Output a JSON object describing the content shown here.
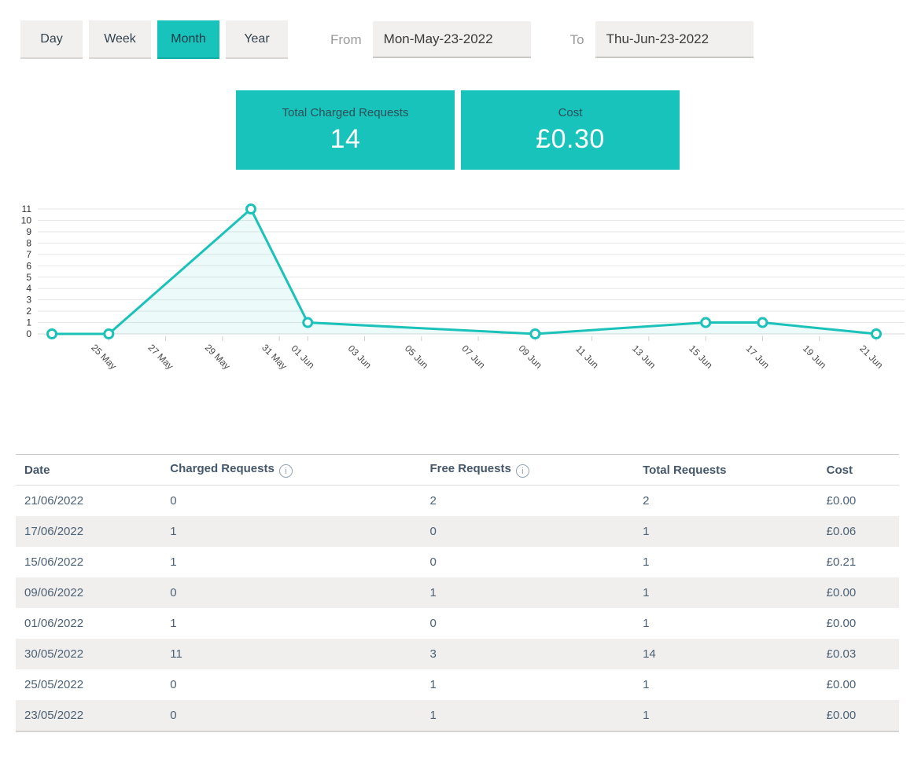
{
  "accent_color": "#17C3BA",
  "controls": {
    "range_buttons": [
      {
        "label": "Day",
        "active": false
      },
      {
        "label": "Week",
        "active": false
      },
      {
        "label": "Month",
        "active": true
      },
      {
        "label": "Year",
        "active": false
      }
    ],
    "from_label": "From",
    "from_value": "Mon-May-23-2022",
    "to_label": "To",
    "to_value": "Thu-Jun-23-2022"
  },
  "summary_cards": [
    {
      "label": "Total Charged Requests",
      "value": "14"
    },
    {
      "label": "Cost",
      "value": "£0.30"
    }
  ],
  "chart_data": {
    "type": "line",
    "title": "",
    "xlabel": "",
    "ylabel": "",
    "ylim": [
      0,
      11
    ],
    "y_ticks": [
      0,
      1,
      2,
      3,
      4,
      5,
      6,
      7,
      8,
      9,
      10,
      11
    ],
    "grid": "horizontal",
    "legend": "none",
    "line_color": "#1BC2B9",
    "marker": "open-circle",
    "fill_color": "rgba(25,194,185,0.08)",
    "x_range_days": [
      0,
      29
    ],
    "series": [
      {
        "name": "Charged Requests",
        "points": [
          {
            "date": "23 May",
            "day": 0,
            "value": 0
          },
          {
            "date": "25 May",
            "day": 2,
            "value": 0
          },
          {
            "date": "30 May",
            "day": 7,
            "value": 11
          },
          {
            "date": "01 Jun",
            "day": 9,
            "value": 1
          },
          {
            "date": "09 Jun",
            "day": 17,
            "value": 0
          },
          {
            "date": "15 Jun",
            "day": 23,
            "value": 1
          },
          {
            "date": "17 Jun",
            "day": 25,
            "value": 1
          },
          {
            "date": "21 Jun",
            "day": 29,
            "value": 0
          }
        ]
      }
    ],
    "x_ticks": [
      {
        "day": 2,
        "label": "25 May"
      },
      {
        "day": 4,
        "label": "27 May"
      },
      {
        "day": 6,
        "label": "29 May"
      },
      {
        "day": 8,
        "label": "31 May"
      },
      {
        "day": 9,
        "label": "01 Jun"
      },
      {
        "day": 11,
        "label": "03 Jun"
      },
      {
        "day": 13,
        "label": "05 Jun"
      },
      {
        "day": 15,
        "label": "07 Jun"
      },
      {
        "day": 17,
        "label": "09 Jun"
      },
      {
        "day": 19,
        "label": "11 Jun"
      },
      {
        "day": 21,
        "label": "13 Jun"
      },
      {
        "day": 23,
        "label": "15 Jun"
      },
      {
        "day": 25,
        "label": "17 Jun"
      },
      {
        "day": 27,
        "label": "19 Jun"
      },
      {
        "day": 29,
        "label": "21 Jun"
      }
    ]
  },
  "table": {
    "columns": [
      {
        "label": "Date",
        "info": false
      },
      {
        "label": "Charged Requests",
        "info": true
      },
      {
        "label": "Free Requests",
        "info": true
      },
      {
        "label": "Total Requests",
        "info": false
      },
      {
        "label": "Cost",
        "info": false
      }
    ],
    "rows": [
      [
        "21/06/2022",
        "0",
        "2",
        "2",
        "£0.00"
      ],
      [
        "17/06/2022",
        "1",
        "0",
        "1",
        "£0.06"
      ],
      [
        "15/06/2022",
        "1",
        "0",
        "1",
        "£0.21"
      ],
      [
        "09/06/2022",
        "0",
        "1",
        "1",
        "£0.00"
      ],
      [
        "01/06/2022",
        "1",
        "0",
        "1",
        "£0.00"
      ],
      [
        "30/05/2022",
        "11",
        "3",
        "14",
        "£0.03"
      ],
      [
        "25/05/2022",
        "0",
        "1",
        "1",
        "£0.00"
      ],
      [
        "23/05/2022",
        "0",
        "1",
        "1",
        "£0.00"
      ]
    ]
  }
}
